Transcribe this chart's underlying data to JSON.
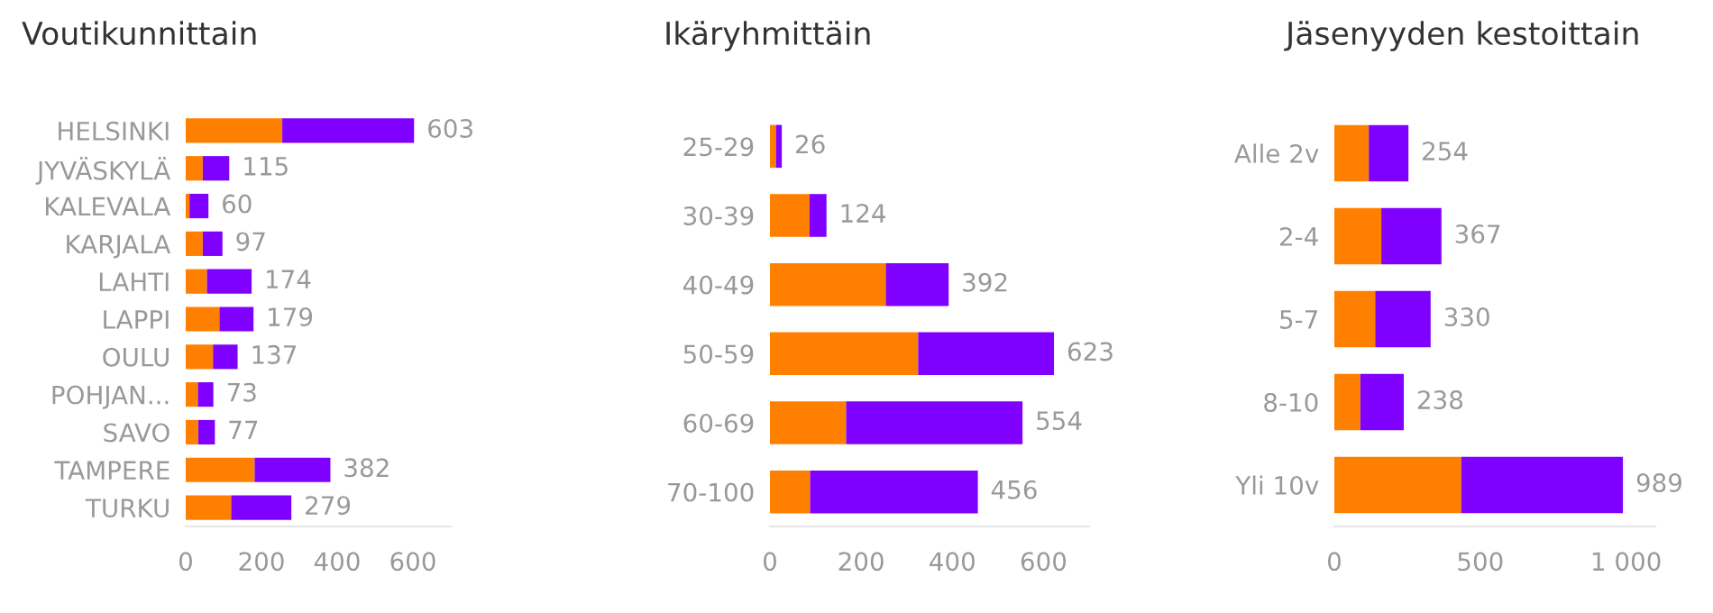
{
  "chart_data": [
    {
      "type": "bar",
      "orientation": "horizontal",
      "stacked": true,
      "title": "Voutikunnittain",
      "categories": [
        "HELSINKI",
        "JYVÄSKYLÄ",
        "KALEVALA",
        "KARJALA",
        "LAHTI",
        "LAPPI",
        "OULU",
        "POHJAN...",
        "SAVO",
        "TAMPERE",
        "TURKU"
      ],
      "series": [
        {
          "color": "#ff8000",
          "values": [
            255,
            45,
            10,
            45,
            56,
            89,
            72,
            32,
            33,
            182,
            120
          ]
        },
        {
          "color": "#8000ff",
          "values": [
            348,
            70,
            50,
            52,
            118,
            90,
            65,
            41,
            44,
            200,
            159
          ]
        }
      ],
      "totals": [
        "603",
        "115",
        "60",
        "97",
        "174",
        "179",
        "137",
        "73",
        "77",
        "382",
        "279"
      ],
      "xlim": [
        0,
        700
      ],
      "xticks": [
        0,
        200,
        400,
        600
      ]
    },
    {
      "type": "bar",
      "orientation": "horizontal",
      "stacked": true,
      "title": "Ikäryhmittäin",
      "categories": [
        "25-29",
        "30-39",
        "40-49",
        "50-59",
        "60-69",
        "70-100"
      ],
      "series": [
        {
          "color": "#ff8000",
          "values": [
            13,
            87,
            254,
            325,
            167,
            88
          ]
        },
        {
          "color": "#8000ff",
          "values": [
            13,
            37,
            138,
            298,
            387,
            368
          ]
        }
      ],
      "totals": [
        "26",
        "124",
        "392",
        "623",
        "554",
        "456"
      ],
      "xlim": [
        0,
        700
      ],
      "xticks": [
        0,
        200,
        400,
        600
      ]
    },
    {
      "type": "bar",
      "orientation": "horizontal",
      "stacked": true,
      "title": "Jäsenyyden kestoittain",
      "categories": [
        "Alle 2v",
        "2-4",
        "5-7",
        "8-10",
        "Yli 10v"
      ],
      "series": [
        {
          "color": "#ff8000",
          "values": [
            118,
            161,
            140,
            89,
            435
          ]
        },
        {
          "color": "#8000ff",
          "values": [
            136,
            206,
            190,
            149,
            554
          ]
        }
      ],
      "totals": [
        "254",
        "367",
        "330",
        "238",
        "989"
      ],
      "xlim": [
        0,
        1100
      ],
      "xticks": [
        0,
        500,
        {
          "value": 1000,
          "label": "1 000"
        }
      ]
    }
  ]
}
